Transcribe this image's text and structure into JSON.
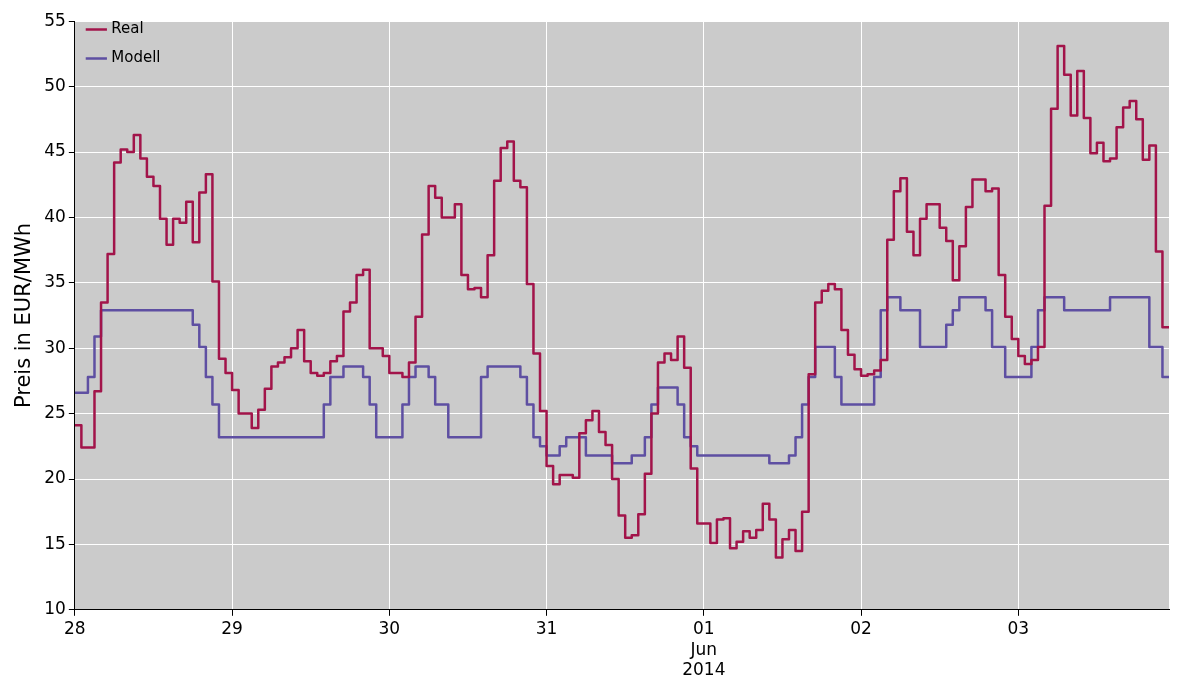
{
  "chart_data": {
    "type": "step",
    "ylabel": "Preis in EUR/MWh",
    "ylim": [
      10,
      55
    ],
    "yticks": [
      10,
      15,
      20,
      25,
      30,
      35,
      40,
      45,
      50,
      55
    ],
    "xlim": [
      "2014-05-28T00:00",
      "2014-06-03T23:00"
    ],
    "xticks": [
      {
        "value": "2014-05-28",
        "label": "28"
      },
      {
        "value": "2014-05-29",
        "label": "29"
      },
      {
        "value": "2014-05-30",
        "label": "30"
      },
      {
        "value": "2014-05-31",
        "label": "31"
      },
      {
        "value": "2014-06-01",
        "label": "01\nJun\n2014"
      },
      {
        "value": "2014-06-02",
        "label": "02"
      },
      {
        "value": "2014-06-03",
        "label": "03"
      }
    ],
    "grid": true,
    "legend": "top left",
    "line_style": "solid",
    "marker": "none",
    "series": [
      {
        "name": "Real",
        "color": "#a2144a",
        "x": [
          "2014-05-28T00:00",
          "2014-05-28T01:00",
          "2014-05-28T02:00",
          "2014-05-28T03:00",
          "2014-05-28T04:00",
          "2014-05-28T05:00",
          "2014-05-28T06:00",
          "2014-05-28T07:00",
          "2014-05-28T08:00",
          "2014-05-28T09:00",
          "2014-05-28T10:00",
          "2014-05-28T11:00",
          "2014-05-28T12:00",
          "2014-05-28T13:00",
          "2014-05-28T14:00",
          "2014-05-28T15:00",
          "2014-05-28T16:00",
          "2014-05-28T17:00",
          "2014-05-28T18:00",
          "2014-05-28T19:00",
          "2014-05-28T20:00",
          "2014-05-28T21:00",
          "2014-05-28T22:00",
          "2014-05-28T23:00",
          "2014-05-29T00:00",
          "2014-05-29T01:00",
          "2014-05-29T02:00",
          "2014-05-29T03:00",
          "2014-05-29T04:00",
          "2014-05-29T05:00",
          "2014-05-29T06:00",
          "2014-05-29T07:00",
          "2014-05-29T08:00",
          "2014-05-29T09:00",
          "2014-05-29T10:00",
          "2014-05-29T11:00",
          "2014-05-29T12:00",
          "2014-05-29T13:00",
          "2014-05-29T14:00",
          "2014-05-29T15:00",
          "2014-05-29T16:00",
          "2014-05-29T17:00",
          "2014-05-29T18:00",
          "2014-05-29T19:00",
          "2014-05-29T20:00",
          "2014-05-29T21:00",
          "2014-05-29T22:00",
          "2014-05-29T23:00",
          "2014-05-30T00:00",
          "2014-05-30T01:00",
          "2014-05-30T02:00",
          "2014-05-30T03:00",
          "2014-05-30T04:00",
          "2014-05-30T05:00",
          "2014-05-30T06:00",
          "2014-05-30T07:00",
          "2014-05-30T08:00",
          "2014-05-30T09:00",
          "2014-05-30T10:00",
          "2014-05-30T11:00",
          "2014-05-30T12:00",
          "2014-05-30T13:00",
          "2014-05-30T14:00",
          "2014-05-30T15:00",
          "2014-05-30T16:00",
          "2014-05-30T17:00",
          "2014-05-30T18:00",
          "2014-05-30T19:00",
          "2014-05-30T20:00",
          "2014-05-30T21:00",
          "2014-05-30T22:00",
          "2014-05-30T23:00",
          "2014-05-31T00:00",
          "2014-05-31T01:00",
          "2014-05-31T02:00",
          "2014-05-31T03:00",
          "2014-05-31T04:00",
          "2014-05-31T05:00",
          "2014-05-31T06:00",
          "2014-05-31T07:00",
          "2014-05-31T08:00",
          "2014-05-31T09:00",
          "2014-05-31T10:00",
          "2014-05-31T11:00",
          "2014-05-31T12:00",
          "2014-05-31T13:00",
          "2014-05-31T14:00",
          "2014-05-31T15:00",
          "2014-05-31T16:00",
          "2014-05-31T17:00",
          "2014-05-31T18:00",
          "2014-05-31T19:00",
          "2014-05-31T20:00",
          "2014-05-31T21:00",
          "2014-05-31T22:00",
          "2014-05-31T23:00",
          "2014-06-01T00:00",
          "2014-06-01T01:00",
          "2014-06-01T02:00",
          "2014-06-01T03:00",
          "2014-06-01T04:00",
          "2014-06-01T05:00",
          "2014-06-01T06:00",
          "2014-06-01T07:00",
          "2014-06-01T08:00",
          "2014-06-01T09:00",
          "2014-06-01T10:00",
          "2014-06-01T11:00",
          "2014-06-01T12:00",
          "2014-06-01T13:00",
          "2014-06-01T14:00",
          "2014-06-01T15:00",
          "2014-06-01T16:00",
          "2014-06-01T17:00",
          "2014-06-01T18:00",
          "2014-06-01T19:00",
          "2014-06-01T20:00",
          "2014-06-01T21:00",
          "2014-06-01T22:00",
          "2014-06-01T23:00",
          "2014-06-02T00:00",
          "2014-06-02T01:00",
          "2014-06-02T02:00",
          "2014-06-02T03:00",
          "2014-06-02T04:00",
          "2014-06-02T05:00",
          "2014-06-02T06:00",
          "2014-06-02T07:00",
          "2014-06-02T08:00",
          "2014-06-02T09:00",
          "2014-06-02T10:00",
          "2014-06-02T11:00",
          "2014-06-02T12:00",
          "2014-06-02T13:00",
          "2014-06-02T14:00",
          "2014-06-02T15:00",
          "2014-06-02T16:00",
          "2014-06-02T17:00",
          "2014-06-02T18:00",
          "2014-06-02T19:00",
          "2014-06-02T20:00",
          "2014-06-02T21:00",
          "2014-06-02T22:00",
          "2014-06-02T23:00",
          "2014-06-03T00:00",
          "2014-06-03T01:00",
          "2014-06-03T02:00",
          "2014-06-03T03:00",
          "2014-06-03T04:00",
          "2014-06-03T05:00",
          "2014-06-03T06:00",
          "2014-06-03T07:00",
          "2014-06-03T08:00",
          "2014-06-03T09:00",
          "2014-06-03T10:00",
          "2014-06-03T11:00",
          "2014-06-03T12:00",
          "2014-06-03T13:00",
          "2014-06-03T14:00",
          "2014-06-03T15:00",
          "2014-06-03T16:00",
          "2014-06-03T17:00",
          "2014-06-03T18:00",
          "2014-06-03T19:00",
          "2014-06-03T20:00",
          "2014-06-03T21:00",
          "2014-06-03T22:00",
          "2014-06-03T23:00"
        ],
        "values": [
          24.1,
          22.4,
          22.4,
          26.7,
          33.5,
          37.2,
          44.2,
          45.2,
          45.0,
          46.3,
          44.5,
          43.1,
          42.4,
          39.9,
          37.9,
          39.9,
          39.6,
          41.2,
          38.1,
          41.9,
          43.3,
          35.1,
          29.2,
          28.1,
          26.8,
          25.0,
          25.0,
          23.9,
          25.3,
          26.9,
          28.6,
          28.9,
          29.3,
          30.0,
          31.4,
          29.0,
          28.1,
          27.9,
          28.1,
          29.0,
          29.4,
          32.8,
          33.5,
          35.6,
          36.0,
          30.0,
          30.0,
          29.4,
          28.1,
          28.1,
          27.8,
          28.9,
          32.4,
          38.7,
          42.4,
          41.5,
          40.0,
          40.0,
          41.0,
          35.6,
          34.5,
          34.6,
          33.9,
          37.1,
          42.8,
          45.3,
          45.8,
          42.8,
          42.3,
          34.9,
          29.6,
          25.2,
          21.0,
          19.6,
          20.3,
          20.3,
          20.1,
          23.5,
          24.5,
          25.2,
          23.6,
          22.6,
          20.0,
          17.2,
          15.5,
          15.7,
          17.3,
          20.4,
          25.0,
          28.9,
          29.6,
          29.1,
          30.9,
          28.5,
          20.8,
          16.6,
          16.6,
          15.1,
          16.9,
          17.0,
          14.7,
          15.2,
          16.0,
          15.5,
          16.1,
          18.1,
          16.9,
          14.0,
          15.4,
          16.1,
          14.5,
          17.5,
          28.0,
          33.5,
          34.4,
          34.9,
          34.5,
          31.4,
          29.5,
          28.4,
          27.9,
          28.0,
          28.3,
          29.1,
          38.3,
          42.0,
          43.0,
          38.9,
          37.1,
          39.9,
          41.0,
          41.0,
          39.2,
          38.2,
          35.2,
          37.8,
          40.8,
          42.9,
          42.9,
          42.0,
          42.2,
          35.6,
          32.4,
          30.7,
          29.4,
          28.8,
          29.1,
          30.1,
          40.9,
          48.3,
          53.1,
          50.9,
          47.8,
          51.2,
          47.6,
          44.9,
          45.7,
          44.3,
          44.5,
          46.9,
          48.4,
          48.9,
          47.5,
          44.4,
          45.5,
          37.4,
          31.6,
          31.6
        ]
      },
      {
        "name": "Modell",
        "color": "#5e4fa2",
        "x": [
          "2014-05-28T00:00",
          "2014-05-28T02:00",
          "2014-05-28T03:00",
          "2014-05-28T04:00",
          "2014-05-28T18:00",
          "2014-05-28T19:00",
          "2014-05-28T20:00",
          "2014-05-28T21:00",
          "2014-05-28T22:00",
          "2014-05-29T14:00",
          "2014-05-29T15:00",
          "2014-05-29T17:00",
          "2014-05-29T20:00",
          "2014-05-29T21:00",
          "2014-05-29T22:00",
          "2014-05-30T02:00",
          "2014-05-30T03:00",
          "2014-05-30T04:00",
          "2014-05-30T06:00",
          "2014-05-30T07:00",
          "2014-05-30T09:00",
          "2014-05-30T14:00",
          "2014-05-30T15:00",
          "2014-05-30T20:00",
          "2014-05-30T21:00",
          "2014-05-30T22:00",
          "2014-05-30T23:00",
          "2014-05-31T00:00",
          "2014-05-31T02:00",
          "2014-05-31T03:00",
          "2014-05-31T06:00",
          "2014-05-31T10:00",
          "2014-05-31T13:00",
          "2014-05-31T15:00",
          "2014-05-31T16:00",
          "2014-05-31T17:00",
          "2014-05-31T20:00",
          "2014-05-31T21:00",
          "2014-05-31T22:00",
          "2014-05-31T23:00",
          "2014-06-01T10:00",
          "2014-06-01T13:00",
          "2014-06-01T14:00",
          "2014-06-01T15:00",
          "2014-06-01T16:00",
          "2014-06-01T17:00",
          "2014-06-01T20:00",
          "2014-06-01T21:00",
          "2014-06-02T02:00",
          "2014-06-02T03:00",
          "2014-06-02T04:00",
          "2014-06-02T06:00",
          "2014-06-02T09:00",
          "2014-06-02T13:00",
          "2014-06-02T14:00",
          "2014-06-02T15:00",
          "2014-06-02T19:00",
          "2014-06-02T20:00",
          "2014-06-02T22:00",
          "2014-06-03T02:00",
          "2014-06-03T03:00",
          "2014-06-03T04:00",
          "2014-06-03T07:00",
          "2014-06-03T14:00",
          "2014-06-03T20:00",
          "2014-06-03T22:00",
          "2014-06-03T23:00"
        ],
        "values": [
          26.6,
          27.8,
          30.9,
          32.9,
          31.8,
          30.1,
          27.8,
          25.7,
          23.2,
          25.7,
          27.8,
          28.6,
          27.8,
          25.7,
          23.2,
          25.7,
          27.8,
          28.6,
          27.8,
          25.7,
          23.2,
          27.8,
          28.6,
          27.8,
          25.7,
          23.2,
          22.5,
          21.8,
          22.5,
          23.2,
          21.8,
          21.2,
          21.8,
          23.2,
          25.7,
          27.0,
          25.7,
          23.2,
          22.5,
          21.8,
          21.2,
          21.8,
          23.2,
          25.7,
          27.8,
          30.1,
          27.8,
          25.7,
          27.8,
          32.9,
          33.9,
          32.9,
          30.1,
          31.8,
          32.9,
          33.9,
          32.9,
          30.1,
          27.8,
          30.1,
          32.9,
          33.9,
          32.9,
          33.9,
          30.1,
          27.8,
          27.8
        ]
      }
    ]
  }
}
